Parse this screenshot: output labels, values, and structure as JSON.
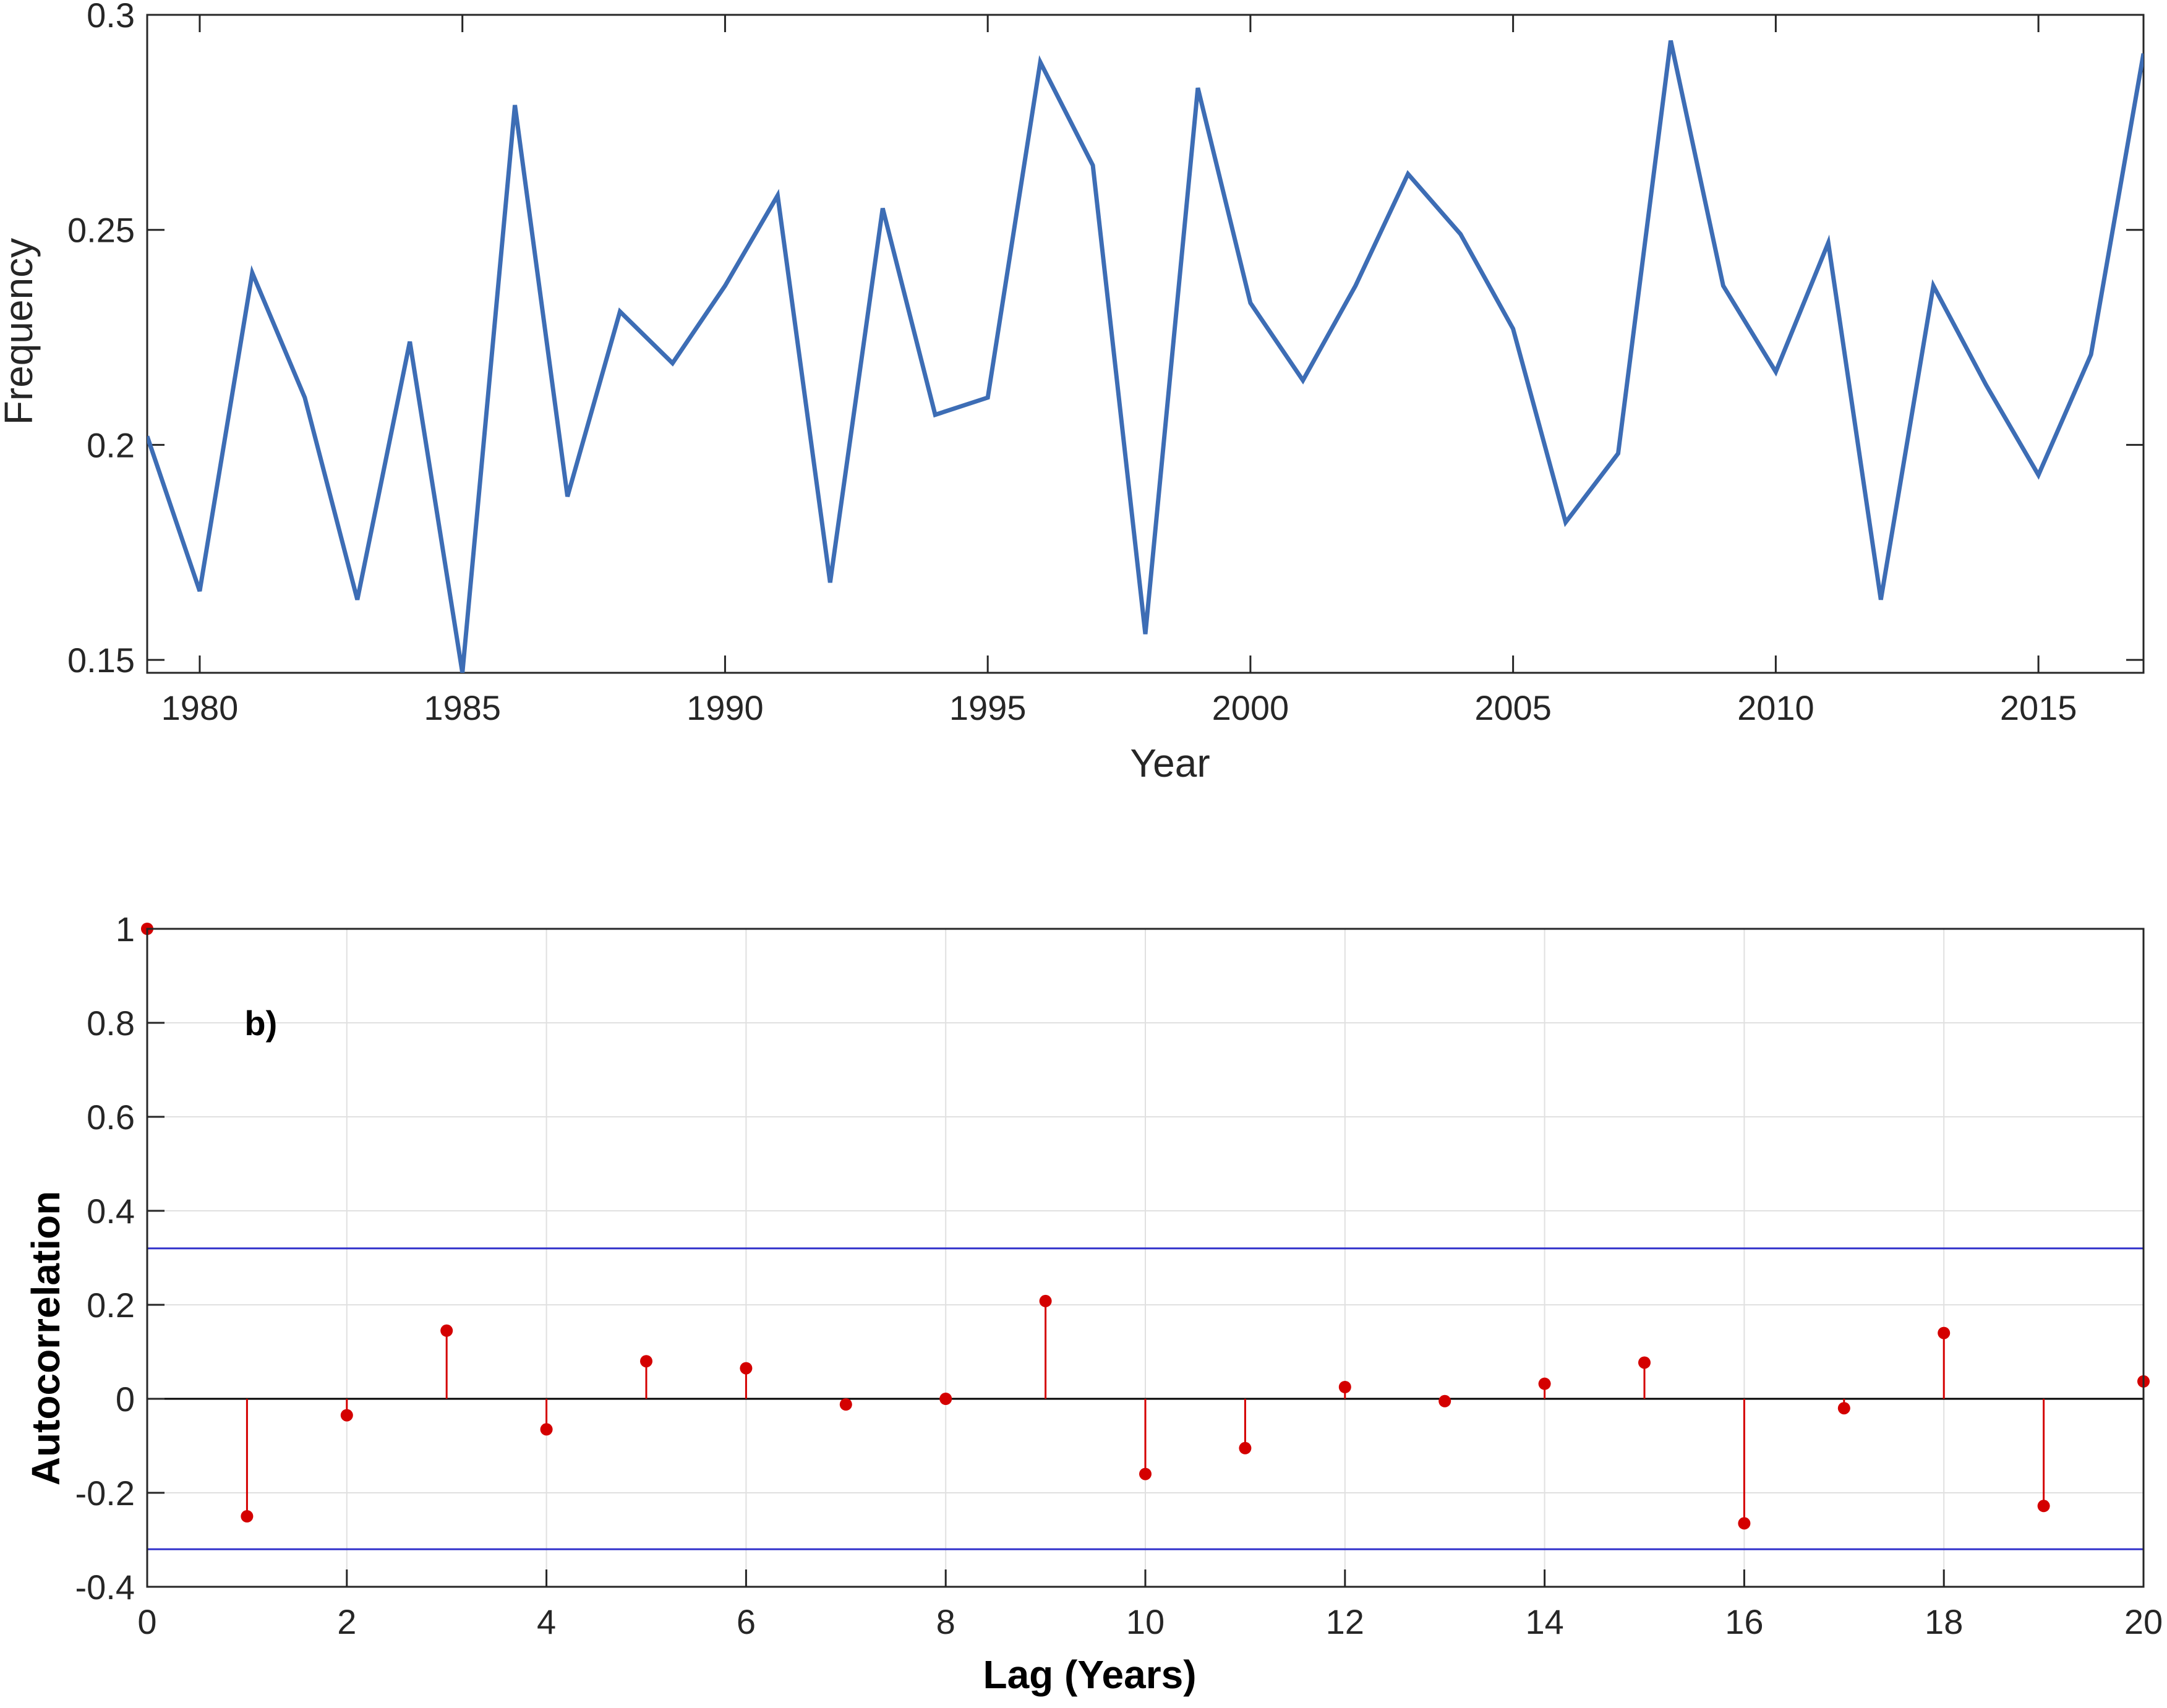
{
  "chart_data": [
    {
      "type": "line",
      "title": "",
      "xlabel": "Year",
      "ylabel": "Frequency",
      "xlim": [
        1979,
        2017
      ],
      "ylim": [
        0.147,
        0.3
      ],
      "xticks": [
        1980,
        1985,
        1990,
        1995,
        2000,
        2005,
        2010,
        2015
      ],
      "xtick_labels": [
        "1980",
        "1985",
        "1990",
        "1995",
        "2000",
        "2005",
        "2010",
        "2015"
      ],
      "yticks": [
        0.15,
        0.2,
        0.25,
        0.3
      ],
      "ytick_labels": [
        "0.15",
        "0.2",
        "0.25",
        "0.3"
      ],
      "grid": false,
      "colors": {
        "line": "#3d6db5",
        "axis": "#262626"
      },
      "x": [
        1979,
        1980,
        1981,
        1982,
        1983,
        1984,
        1985,
        1986,
        1987,
        1988,
        1989,
        1990,
        1991,
        1992,
        1993,
        1994,
        1995,
        1996,
        1997,
        1998,
        1999,
        2000,
        2001,
        2002,
        2003,
        2004,
        2005,
        2006,
        2007,
        2008,
        2009,
        2010,
        2011,
        2012,
        2013,
        2014,
        2015,
        2016,
        2017
      ],
      "series": [
        {
          "values": [
            0.202,
            0.166,
            0.24,
            0.211,
            0.164,
            0.224,
            0.147,
            0.279,
            0.188,
            0.231,
            0.219,
            0.237,
            0.258,
            0.168,
            0.255,
            0.207,
            0.211,
            0.289,
            0.265,
            0.156,
            0.283,
            0.233,
            0.215,
            0.237,
            0.263,
            0.249,
            0.227,
            0.182,
            0.198,
            0.294,
            0.237,
            0.217,
            0.247,
            0.164,
            0.237,
            0.214,
            0.193,
            0.221,
            0.291
          ]
        }
      ]
    },
    {
      "type": "stem",
      "title": "",
      "panel_label": "b)",
      "xlabel": "Lag (Years)",
      "ylabel": "Autocorrelation",
      "xlim": [
        0,
        20
      ],
      "ylim": [
        -0.4,
        1
      ],
      "xticks": [
        0,
        2,
        4,
        6,
        8,
        10,
        12,
        14,
        16,
        18,
        20
      ],
      "xtick_labels": [
        "0",
        "2",
        "4",
        "6",
        "8",
        "10",
        "12",
        "14",
        "16",
        "18",
        "20"
      ],
      "yticks": [
        -0.4,
        -0.2,
        0,
        0.2,
        0.4,
        0.6,
        0.8,
        1
      ],
      "ytick_labels": [
        "-0.4",
        "-0.2",
        "0",
        "0.2",
        "0.4",
        "0.6",
        "0.8",
        "1"
      ],
      "grid": true,
      "confidence_bounds": [
        0.32,
        -0.32
      ],
      "colors": {
        "stem": "#d40000",
        "bounds": "#3333cc",
        "zero_line": "#000000",
        "grid": "#e0e0e0",
        "axis": "#262626"
      },
      "x": [
        0,
        1,
        2,
        3,
        4,
        5,
        6,
        7,
        8,
        9,
        10,
        11,
        12,
        13,
        14,
        15,
        16,
        17,
        18,
        19,
        20
      ],
      "series": [
        {
          "values": [
            1.0,
            -0.25,
            -0.035,
            0.145,
            -0.065,
            0.08,
            0.065,
            -0.012,
            0.0,
            0.208,
            -0.16,
            -0.105,
            0.025,
            -0.005,
            0.032,
            0.077,
            -0.265,
            -0.02,
            0.14,
            -0.228,
            0.037
          ]
        }
      ]
    }
  ]
}
